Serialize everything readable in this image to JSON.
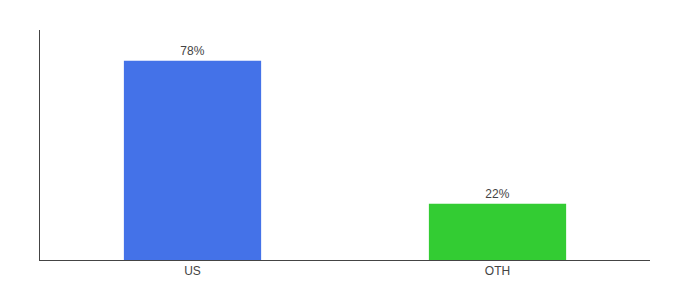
{
  "chart_data": {
    "type": "bar",
    "categories": [
      "US",
      "OTH"
    ],
    "values": [
      78,
      22
    ],
    "value_labels": [
      "78%",
      "22%"
    ],
    "data_labels": true,
    "colors": [
      "#4472e8",
      "#33cc33"
    ],
    "ylim": [
      0,
      90
    ],
    "tick_labels": "x",
    "grid": false
  }
}
